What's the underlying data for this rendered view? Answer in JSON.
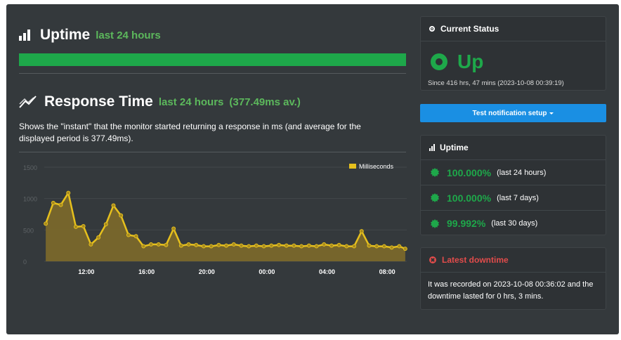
{
  "uptime_section": {
    "title": "Uptime",
    "subtitle": "last 24 hours"
  },
  "response_section": {
    "title": "Response Time",
    "subtitle": "last 24 hours",
    "average": "(377.49ms av.)",
    "description": "Shows the \"instant\" that the monitor started returning a response in ms (and average for the displayed period is 377.49ms)."
  },
  "chart_data": {
    "type": "area",
    "title": "",
    "xlabel": "",
    "ylabel": "",
    "legend": {
      "label": "Milliseconds",
      "placement": "top-right"
    },
    "y_ticks": [
      "0",
      "500",
      "1000",
      "1500"
    ],
    "ylim": [
      0,
      1500
    ],
    "x_tick_labels": [
      "12:00",
      "16:00",
      "20:00",
      "00:00",
      "04:00",
      "08:00"
    ],
    "x_tick_hours": [
      12,
      16,
      20,
      24,
      28,
      32
    ],
    "xlim": [
      9.2,
      33.3
    ],
    "series": [
      {
        "name": "Milliseconds",
        "color": "#e6c01d",
        "x": [
          9.3,
          9.8,
          10.3,
          10.8,
          11.3,
          11.8,
          12.3,
          12.8,
          13.3,
          13.8,
          14.3,
          14.8,
          15.3,
          15.8,
          16.3,
          16.8,
          17.3,
          17.8,
          18.3,
          18.8,
          19.3,
          19.8,
          20.3,
          20.8,
          21.3,
          21.8,
          22.3,
          22.8,
          23.3,
          23.8,
          24.3,
          24.8,
          25.3,
          25.8,
          26.3,
          26.8,
          27.3,
          27.8,
          28.3,
          28.8,
          29.3,
          29.8,
          30.3,
          30.8,
          31.3,
          31.8,
          32.3,
          32.8,
          33.2
        ],
        "values": [
          600,
          930,
          900,
          1090,
          550,
          560,
          270,
          380,
          590,
          890,
          730,
          420,
          400,
          240,
          270,
          270,
          260,
          520,
          250,
          270,
          260,
          240,
          240,
          260,
          250,
          270,
          250,
          240,
          250,
          240,
          250,
          260,
          250,
          250,
          240,
          250,
          240,
          270,
          250,
          260,
          240,
          240,
          480,
          250,
          240,
          240,
          220,
          240,
          200
        ]
      }
    ]
  },
  "current_status": {
    "header": "Current Status",
    "state": "Up",
    "since": "Since 416 hrs, 47 mins (2023-10-08 00:39:19)"
  },
  "test_button": {
    "label": "Test notification setup"
  },
  "uptime_card": {
    "header": "Uptime",
    "rows": [
      {
        "percent": "100.000%",
        "range": "(last 24 hours)"
      },
      {
        "percent": "100.000%",
        "range": "(last 7 days)"
      },
      {
        "percent": "99.992%",
        "range": "(last 30 days)"
      }
    ]
  },
  "latest_downtime": {
    "header": "Latest downtime",
    "text": "It was recorded on 2023-10-08 00:36:02 and the downtime lasted for 0 hrs, 3 mins."
  },
  "colors": {
    "green": "#1ea84a",
    "blue": "#1a8fe3",
    "red": "#e24c4b",
    "chart_line": "#e6c01d"
  }
}
